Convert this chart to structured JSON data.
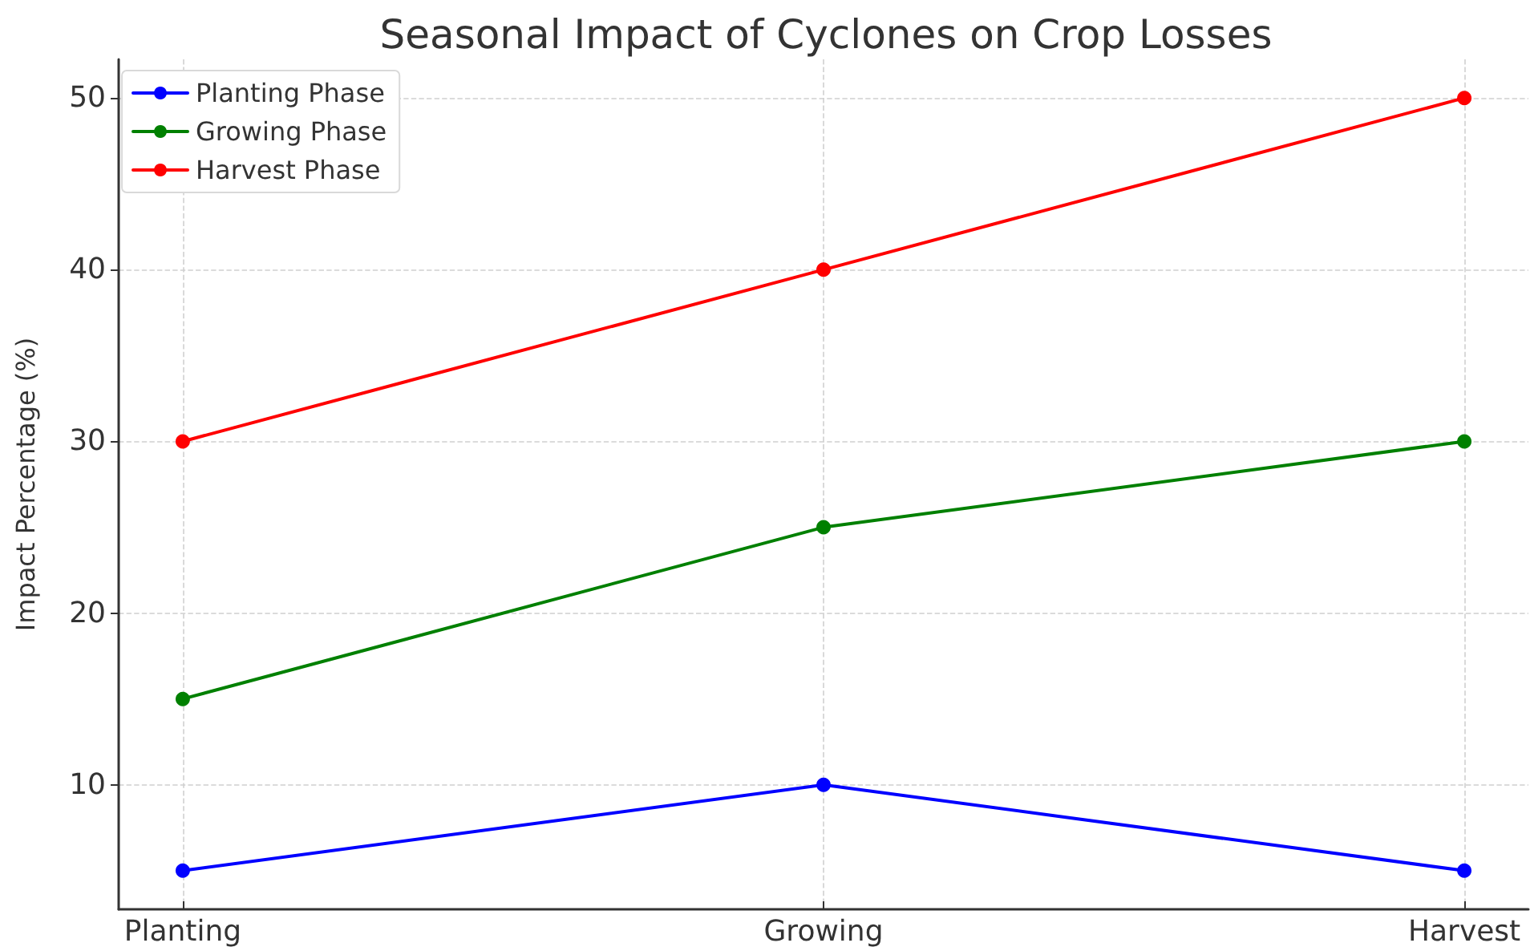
{
  "chart_data": {
    "type": "line",
    "title": "Seasonal Impact of Cyclones on Crop Losses",
    "ylabel": "Impact Percentage (%)",
    "categories": [
      "Planting",
      "Growing",
      "Harvest"
    ],
    "series": [
      {
        "name": "Planting Phase",
        "color": "#0000ff",
        "values": [
          5,
          10,
          5
        ]
      },
      {
        "name": "Growing Phase",
        "color": "#008000",
        "values": [
          15,
          25,
          30
        ]
      },
      {
        "name": "Harvest Phase",
        "color": "#ff0000",
        "values": [
          30,
          40,
          50
        ]
      }
    ],
    "ylim": [
      2.75,
      52.25
    ],
    "yticks": [
      10,
      20,
      30,
      40,
      50
    ],
    "grid": true,
    "legend": "top left",
    "marker": "circle",
    "line_style": "solid"
  }
}
